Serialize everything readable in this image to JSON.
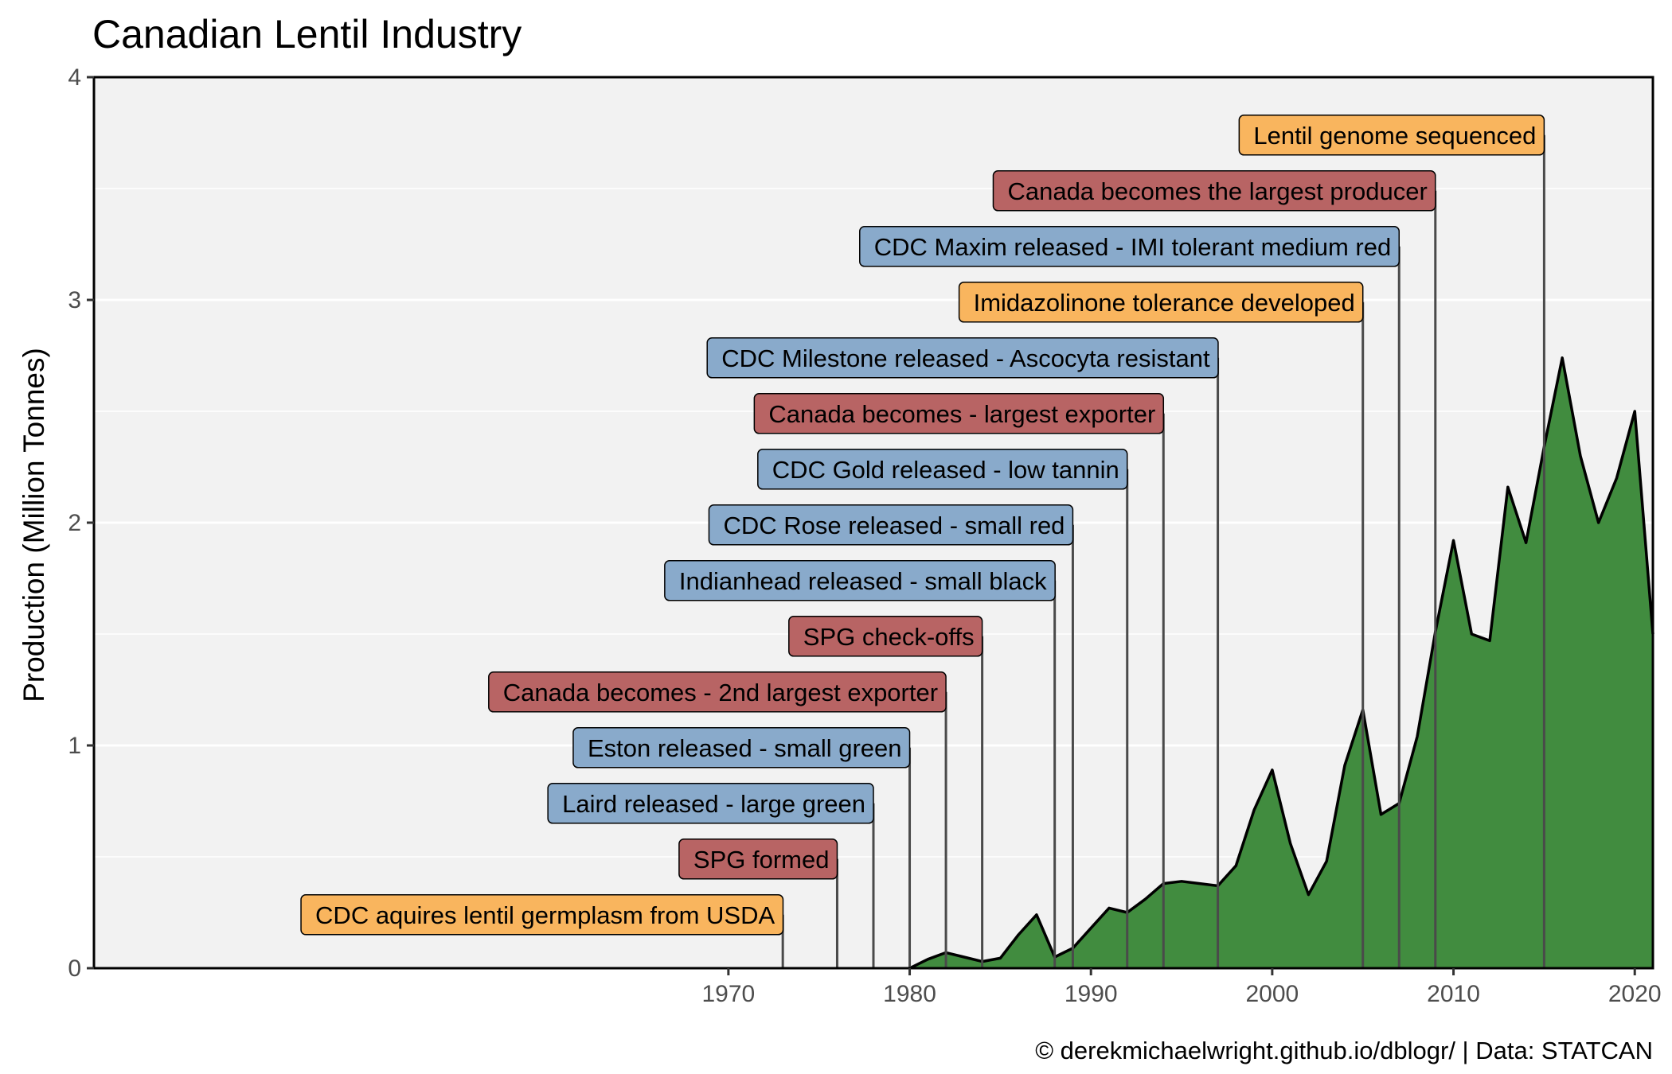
{
  "chart_data": {
    "type": "area",
    "title": "Canadian Lentil Industry",
    "ylabel": "Production (Million Tonnes)",
    "xlabel": "",
    "caption": "© derekmichaelwright.github.io/dblogr/ | Data: STATCAN",
    "xlim": [
      1935,
      2021
    ],
    "ylim": [
      0,
      4
    ],
    "x_ticks": [
      1970,
      1980,
      1990,
      2000,
      2010,
      2020
    ],
    "y_ticks": [
      0,
      1,
      2,
      3,
      4
    ],
    "grid": true,
    "colors": {
      "panel": "#f2f2f2",
      "grid": "#ffffff",
      "area_fill": "#3b8839",
      "area_line": "#000000",
      "label_orange": "#f9b55e",
      "label_red": "#b86464",
      "label_blue": "#89aacb",
      "connector": "#4a4a4a"
    },
    "series": [
      {
        "x": [
          1980,
          1981,
          1982,
          1983,
          1984,
          1985,
          1986,
          1987,
          1988,
          1989,
          1990,
          1991,
          1992,
          1993,
          1994,
          1995,
          1996,
          1997,
          1998,
          1999,
          2000,
          2001,
          2002,
          2003,
          2004,
          2005,
          2006,
          2007,
          2008,
          2009,
          2010,
          2011,
          2012,
          2013,
          2014,
          2015,
          2016,
          2017,
          2018,
          2019,
          2020,
          2021
        ],
        "values": [
          0.0,
          0.04,
          0.07,
          0.05,
          0.03,
          0.045,
          0.15,
          0.24,
          0.05,
          0.09,
          0.18,
          0.27,
          0.25,
          0.31,
          0.38,
          0.39,
          0.38,
          0.37,
          0.46,
          0.71,
          0.89,
          0.56,
          0.33,
          0.48,
          0.91,
          1.16,
          0.69,
          0.74,
          1.04,
          1.51,
          1.92,
          1.5,
          1.47,
          2.16,
          1.91,
          2.34,
          2.74,
          2.3,
          2.0,
          2.2,
          2.5,
          1.5
        ]
      }
    ],
    "annotations": [
      {
        "year": 1973,
        "y": 0.24,
        "label": "CDC aquires lentil germplasm from USDA",
        "category": "orange"
      },
      {
        "year": 1976,
        "y": 0.49,
        "label": "SPG formed",
        "category": "red"
      },
      {
        "year": 1978,
        "y": 0.74,
        "label": "Laird released - large green",
        "category": "blue"
      },
      {
        "year": 1980,
        "y": 0.99,
        "label": "Eston released - small green",
        "category": "blue"
      },
      {
        "year": 1982,
        "y": 1.24,
        "label": "Canada becomes - 2nd largest exporter",
        "category": "red"
      },
      {
        "year": 1984,
        "y": 1.49,
        "label": "SPG check-offs",
        "category": "red"
      },
      {
        "year": 1988,
        "y": 1.74,
        "label": "Indianhead released - small black",
        "category": "blue"
      },
      {
        "year": 1989,
        "y": 1.99,
        "label": "CDC Rose released - small red",
        "category": "blue"
      },
      {
        "year": 1992,
        "y": 2.24,
        "label": "CDC Gold released - low tannin",
        "category": "blue"
      },
      {
        "year": 1994,
        "y": 2.49,
        "label": "Canada becomes - largest exporter",
        "category": "red"
      },
      {
        "year": 1997,
        "y": 2.74,
        "label": "CDC Milestone released - Ascocyta resistant",
        "category": "blue"
      },
      {
        "year": 2005,
        "y": 2.99,
        "label": "Imidazolinone tolerance developed",
        "category": "orange"
      },
      {
        "year": 2007,
        "y": 3.24,
        "label": "CDC Maxim released - IMI tolerant medium red",
        "category": "blue"
      },
      {
        "year": 2009,
        "y": 3.49,
        "label": "Canada becomes the largest producer",
        "category": "red"
      },
      {
        "year": 2015,
        "y": 3.74,
        "label": "Lentil genome sequenced",
        "category": "orange"
      }
    ]
  }
}
